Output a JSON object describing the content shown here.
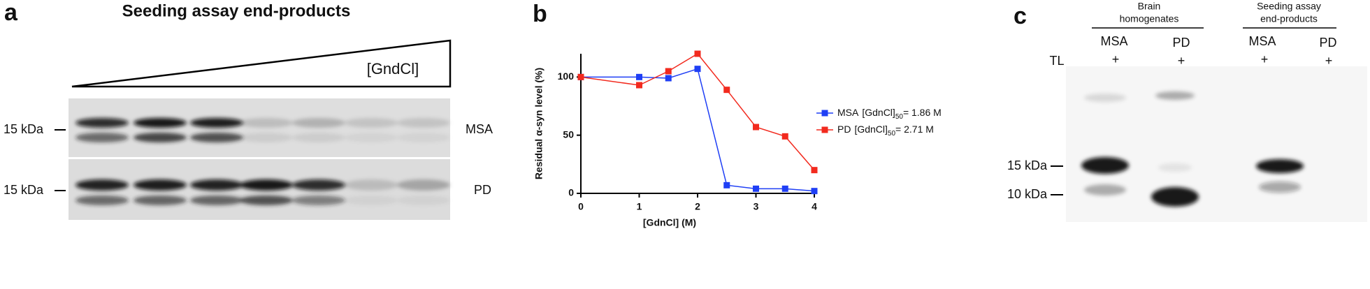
{
  "panel_a": {
    "letter": "a",
    "title": "Seeding assay end-products",
    "gradient_label": "[GndCl]",
    "marker": [
      "15 kDa",
      "15 kDa"
    ],
    "rows": [
      "MSA",
      "PD"
    ]
  },
  "chart_data": {
    "type": "line",
    "letter": "b",
    "x_label": "[GdnCl] (M)",
    "y_label": "Residual α-syn level (%)",
    "x": [
      0,
      1,
      1.5,
      2,
      2.5,
      3,
      3.5,
      4
    ],
    "series": [
      {
        "name": "MSA",
        "color": "#1f3ff5",
        "values": [
          100,
          100,
          99,
          107,
          7,
          4,
          4,
          2
        ],
        "note": {
          "text": "[GdnCl]",
          "sub": "50",
          "rest": "= 1.86 M"
        }
      },
      {
        "name": "PD",
        "color": "#f22a1e",
        "values": [
          100,
          93,
          105,
          120,
          89,
          57,
          49,
          20
        ],
        "note": {
          "text": "[GdnCl]",
          "sub": "50",
          "rest": "=  2.71 M"
        }
      }
    ],
    "xlim": [
      0,
      4
    ],
    "xticks": [
      0,
      1,
      2,
      3,
      4
    ],
    "ylim": [
      0,
      120
    ],
    "yticks": [
      0,
      50,
      100
    ]
  },
  "panel_c": {
    "letter": "c",
    "groups": [
      [
        "Brain",
        "homogenates"
      ],
      [
        "Seeding assay",
        "end-products"
      ]
    ],
    "lanes": [
      "MSA",
      "PD",
      "MSA",
      "PD"
    ],
    "row_label": "TL",
    "signs": [
      "+",
      "+",
      "+",
      "+"
    ],
    "markers": [
      "15 kDa",
      "10 kDa"
    ]
  }
}
